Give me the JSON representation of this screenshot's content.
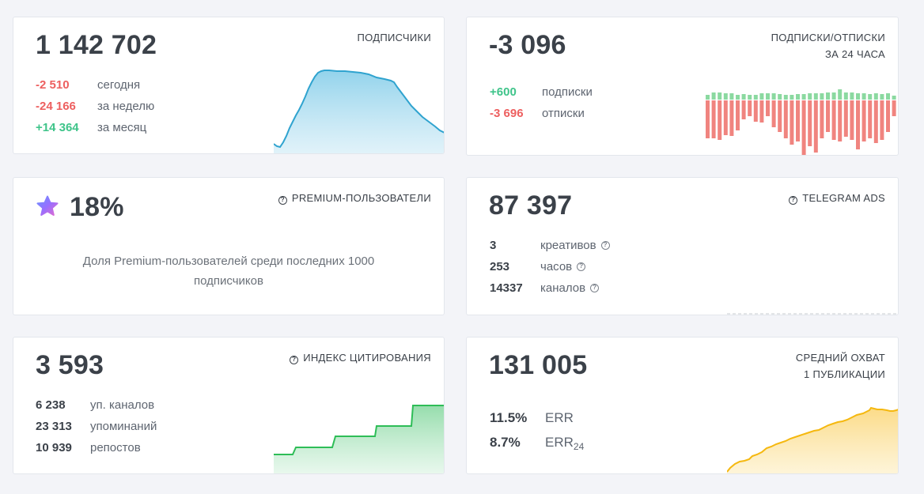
{
  "subscribers": {
    "title": "ПОДПИСЧИКИ",
    "value": "1 142 702",
    "stats": [
      {
        "value": "-2 510",
        "label": "сегодня",
        "tone": "red"
      },
      {
        "value": "-24 166",
        "label": "за неделю",
        "tone": "red"
      },
      {
        "value": "+14 364",
        "label": "за месяц",
        "tone": "green"
      }
    ],
    "color": "#2fa3cf"
  },
  "subs_unsubs": {
    "title_line1": "ПОДПИСКИ/ОТПИСКИ",
    "title_line2": "ЗА 24 ЧАСА",
    "value": "-3 096",
    "stats": [
      {
        "value": "+600",
        "label": "подписки",
        "tone": "green"
      },
      {
        "value": "-3 696",
        "label": "отписки",
        "tone": "red"
      }
    ],
    "colors": {
      "up": "#8bd9a0",
      "down": "#f0847f"
    }
  },
  "premium": {
    "title": "PREMIUM-ПОЛЬЗОВАТЕЛИ",
    "value": "18%",
    "description": "Доля Premium-пользователей среди последних 1000 подписчиков",
    "icon": "premium-star-icon"
  },
  "telegram_ads": {
    "title": "TELEGRAM ADS",
    "value": "87 397",
    "stats": [
      {
        "value": "3",
        "label": "креативов"
      },
      {
        "value": "253",
        "label": "часов"
      },
      {
        "value": "14337",
        "label": "каналов"
      }
    ]
  },
  "citation": {
    "title": "ИНДЕКС ЦИТИРОВАНИЯ",
    "value": "3 593",
    "stats": [
      {
        "value": "6 238",
        "label": "уп. каналов"
      },
      {
        "value": "23 313",
        "label": "упоминаний"
      },
      {
        "value": "10 939",
        "label": "репостов"
      }
    ],
    "color": "#2ebd57"
  },
  "reach": {
    "title_line1": "СРЕДНИЙ ОХВАТ",
    "title_line2": "1 ПУБЛИКАЦИИ",
    "value": "131 005",
    "err": {
      "value": "11.5%",
      "label": "ERR"
    },
    "err24": {
      "value": "8.7%",
      "label": "ERR",
      "sub": "24"
    },
    "color": "#f5b80f"
  }
}
